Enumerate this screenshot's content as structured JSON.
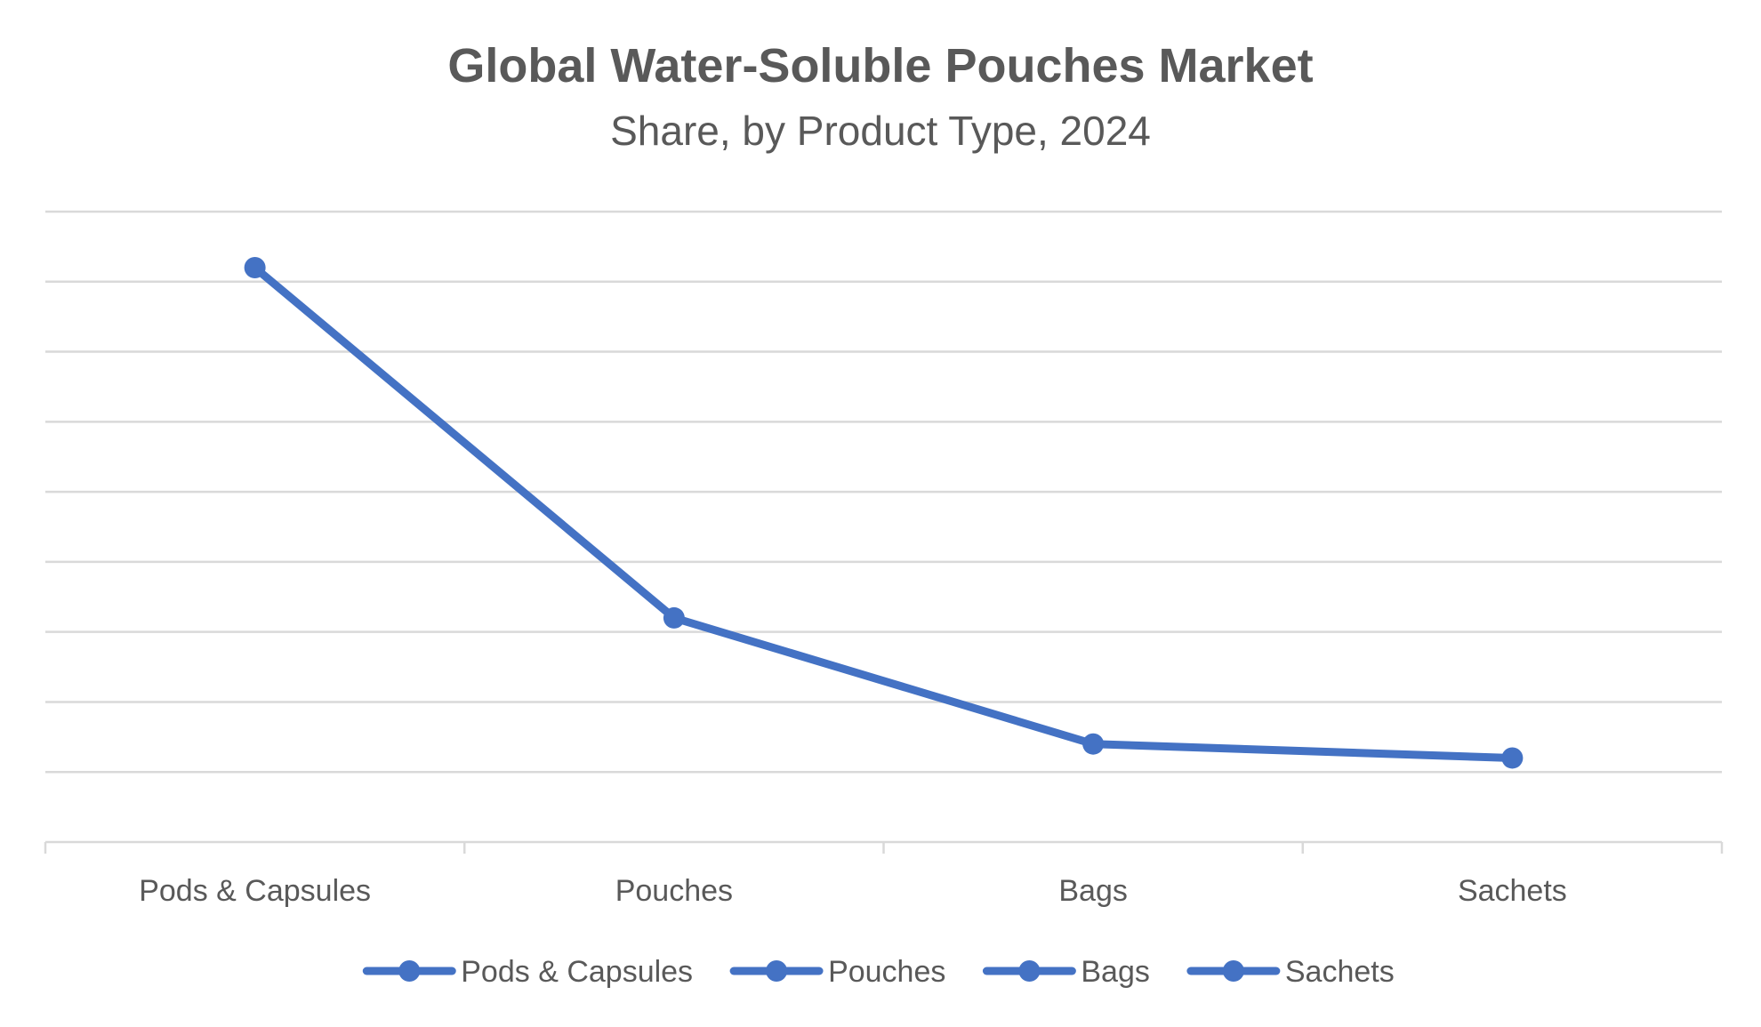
{
  "chart_data": {
    "type": "line",
    "title": "Global Water-Soluble Pouches Market",
    "subtitle": "Share, by Product Type, 2024",
    "categories": [
      "Pods & Capsules",
      "Pouches",
      "Bags",
      "Sachets"
    ],
    "series": [
      {
        "name": "Share",
        "values": [
          82,
          32,
          14,
          12
        ]
      }
    ],
    "legend": {
      "placement": "bottom",
      "entries": [
        "Pods & Capsules",
        "Pouches",
        "Bags",
        "Sachets"
      ]
    },
    "ylim": [
      0,
      90
    ],
    "y_tick_step": 10,
    "y_tick_labels_visible": false,
    "grid": true,
    "colors": {
      "series": "#4472c4",
      "grid": "#d9d9d9",
      "text": "#595959"
    }
  }
}
